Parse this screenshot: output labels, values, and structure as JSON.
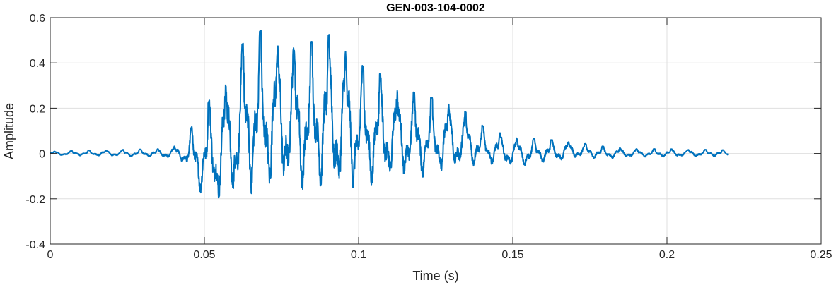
{
  "chart_data": {
    "type": "line",
    "title": "GEN-003-104-0002",
    "xlabel": "Time (s)",
    "ylabel": "Amplitude",
    "xlim": [
      0,
      0.25
    ],
    "ylim": [
      -0.4,
      0.6
    ],
    "xticks": [
      0,
      0.05,
      0.1,
      0.15,
      0.2,
      0.25
    ],
    "xtick_labels": [
      "0",
      "0.05",
      "0.1",
      "0.15",
      "0.2",
      "0.25"
    ],
    "yticks": [
      -0.4,
      -0.2,
      0,
      0.2,
      0.4,
      0.6
    ],
    "ytick_labels": [
      "-0.4",
      "-0.2",
      "0",
      "0.2",
      "0.4",
      "0.6"
    ],
    "grid": true,
    "series": [
      {
        "color": "#0072BD",
        "x_start": 0,
        "x_end": 0.22,
        "envelope": [
          {
            "t": 0.0,
            "max": 0.01,
            "min": -0.01
          },
          {
            "t": 0.035,
            "max": 0.02,
            "min": -0.02
          },
          {
            "t": 0.04,
            "max": 0.03,
            "min": -0.03
          },
          {
            "t": 0.043,
            "max": 0.05,
            "min": -0.05
          },
          {
            "t": 0.046,
            "max": 0.12,
            "min": -0.15
          },
          {
            "t": 0.05,
            "max": 0.19,
            "min": -0.25
          },
          {
            "t": 0.054,
            "max": 0.3,
            "min": -0.3
          },
          {
            "t": 0.058,
            "max": 0.35,
            "min": -0.28
          },
          {
            "t": 0.062,
            "max": 0.48,
            "min": -0.28
          },
          {
            "t": 0.066,
            "max": 0.52,
            "min": -0.25
          },
          {
            "t": 0.07,
            "max": 0.56,
            "min": -0.26
          },
          {
            "t": 0.074,
            "max": 0.5,
            "min": -0.25
          },
          {
            "t": 0.078,
            "max": 0.5,
            "min": -0.24
          },
          {
            "t": 0.082,
            "max": 0.48,
            "min": -0.25
          },
          {
            "t": 0.086,
            "max": 0.5,
            "min": -0.24
          },
          {
            "t": 0.09,
            "max": 0.53,
            "min": -0.25
          },
          {
            "t": 0.094,
            "max": 0.48,
            "min": -0.27
          },
          {
            "t": 0.098,
            "max": 0.46,
            "min": -0.25
          },
          {
            "t": 0.102,
            "max": 0.37,
            "min": -0.21
          },
          {
            "t": 0.106,
            "max": 0.36,
            "min": -0.2
          },
          {
            "t": 0.11,
            "max": 0.32,
            "min": -0.18
          },
          {
            "t": 0.114,
            "max": 0.28,
            "min": -0.16
          },
          {
            "t": 0.118,
            "max": 0.27,
            "min": -0.15
          },
          {
            "t": 0.122,
            "max": 0.25,
            "min": -0.15
          },
          {
            "t": 0.126,
            "max": 0.24,
            "min": -0.14
          },
          {
            "t": 0.13,
            "max": 0.22,
            "min": -0.12
          },
          {
            "t": 0.134,
            "max": 0.19,
            "min": -0.1
          },
          {
            "t": 0.138,
            "max": 0.15,
            "min": -0.08
          },
          {
            "t": 0.142,
            "max": 0.1,
            "min": -0.07
          },
          {
            "t": 0.146,
            "max": 0.09,
            "min": -0.06
          },
          {
            "t": 0.15,
            "max": 0.07,
            "min": -0.08
          },
          {
            "t": 0.155,
            "max": 0.07,
            "min": -0.07
          },
          {
            "t": 0.16,
            "max": 0.06,
            "min": -0.05
          },
          {
            "t": 0.165,
            "max": 0.06,
            "min": -0.05
          },
          {
            "t": 0.17,
            "max": 0.05,
            "min": -0.03
          },
          {
            "t": 0.175,
            "max": 0.04,
            "min": -0.03
          },
          {
            "t": 0.18,
            "max": 0.03,
            "min": -0.03
          },
          {
            "t": 0.19,
            "max": 0.02,
            "min": -0.02
          },
          {
            "t": 0.2,
            "max": 0.02,
            "min": -0.02
          },
          {
            "t": 0.22,
            "max": 0.015,
            "min": -0.015
          }
        ]
      }
    ]
  }
}
